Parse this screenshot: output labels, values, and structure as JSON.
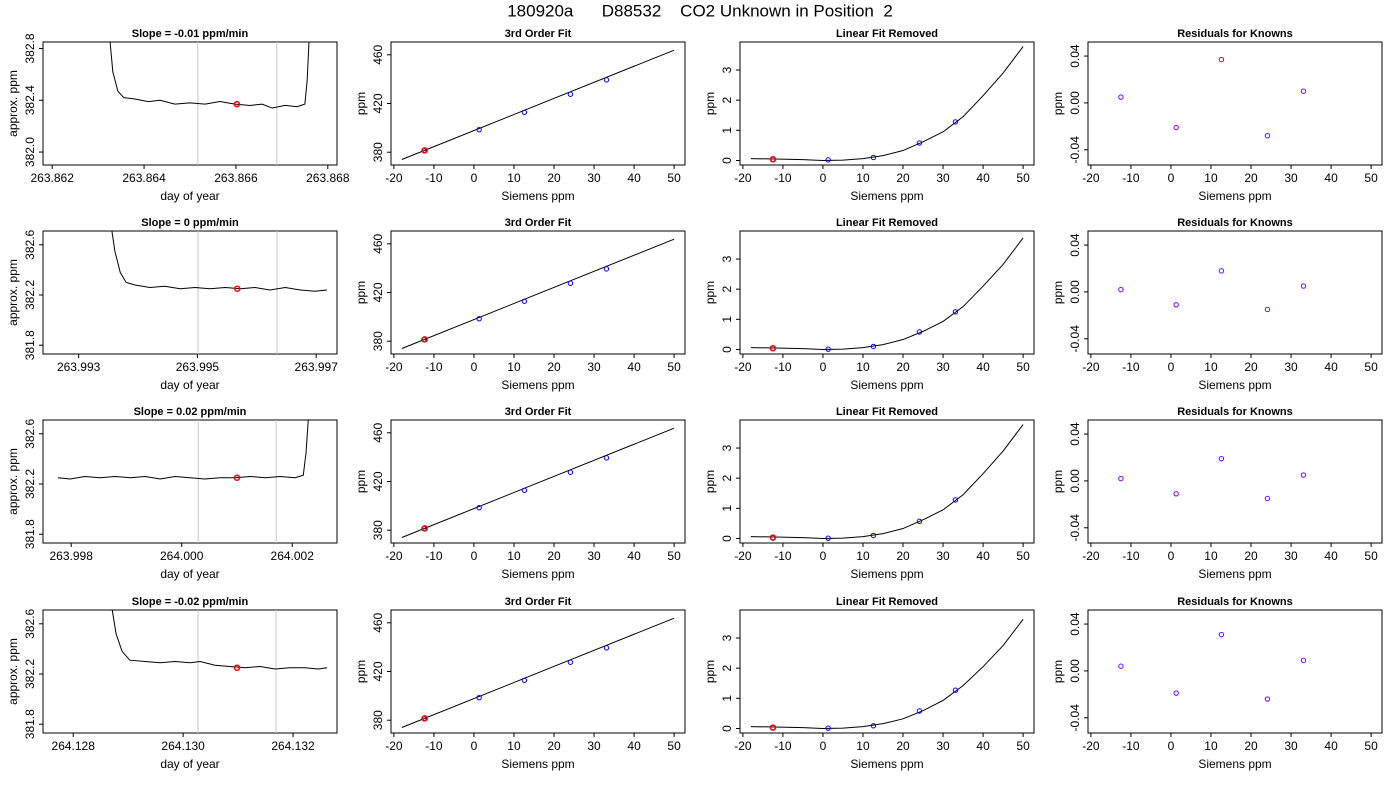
{
  "title": "180920a      D88532    CO2 Unknown in Position  2",
  "chart_data": [
    {
      "type": "line",
      "title": "Slope =  -0.01  ppm/min",
      "xlabel": "day of year",
      "ylabel": "approx. ppm",
      "xlim": [
        263.8618,
        263.8682
      ],
      "ylim": [
        381.9,
        382.85
      ],
      "xticks": [
        263.862,
        263.864,
        263.866,
        263.868
      ],
      "yticks": [
        {
          "value": 382,
          "label": "382.0"
        },
        382.4,
        382.8
      ],
      "line": {
        "x": [
          263.86326,
          263.86332,
          263.86343,
          263.86356,
          263.8638,
          263.86409,
          263.86435,
          263.86467,
          263.865,
          263.86533,
          263.86565,
          263.86598,
          263.86631,
          263.86657,
          263.86679,
          263.86707,
          263.86733,
          263.8675,
          263.86755,
          263.86759
        ],
        "y": [
          382.85,
          382.62,
          382.47,
          382.42,
          382.41,
          382.39,
          382.4,
          382.37,
          382.38,
          382.37,
          382.39,
          382.37,
          382.36,
          382.37,
          382.34,
          382.36,
          382.35,
          382.37,
          382.55,
          382.85
        ],
        "color": "#000000"
      },
      "vlines": {
        "x": [
          263.86517,
          263.86689
        ],
        "color": "#c8c8c8"
      },
      "highlight": {
        "x": [
          263.86602
        ],
        "y": [
          382.37
        ],
        "color": "#ff0000"
      }
    },
    {
      "type": "scatter",
      "title": "3rd Order Fit",
      "xlabel": "Siemens ppm",
      "ylabel": "ppm",
      "xlim": [
        -20.72,
        52.72
      ],
      "ylim": [
        369.5,
        470.5
      ],
      "xticks": [
        -20,
        -10,
        0,
        10,
        20,
        30,
        40,
        50
      ],
      "yticks": [
        380,
        420,
        460
      ],
      "line": {
        "x": [
          -18,
          16,
          50
        ],
        "y": [
          374,
          418.9,
          463.8
        ],
        "color": "#000000"
      },
      "points": {
        "x": [
          -12.5,
          1.3,
          12.6,
          24.1,
          33.1
        ],
        "y": [
          381.3,
          398.5,
          412.8,
          427.6,
          439.4
        ],
        "color": "#0000ff"
      },
      "highlight": {
        "x": [
          -12.3
        ],
        "y": [
          381.5
        ],
        "color": "#ff0000"
      }
    },
    {
      "type": "scatter",
      "title": "Linear Fit Removed",
      "xlabel": "Siemens ppm",
      "ylabel": "ppm",
      "xlim": [
        -20.72,
        52.72
      ],
      "ylim": [
        -0.15,
        3.93
      ],
      "xticks": [
        -20,
        -10,
        0,
        10,
        20,
        30,
        40,
        50
      ],
      "yticks": [
        0,
        1,
        2,
        3
      ],
      "line": {
        "x": [
          -18,
          -12,
          -5,
          0,
          5,
          10,
          15,
          20,
          25,
          30,
          35,
          40,
          45,
          50
        ],
        "y": [
          0.06,
          0.05,
          0.03,
          0,
          0.01,
          0.06,
          0.16,
          0.33,
          0.62,
          0.95,
          1.45,
          2.15,
          2.9,
          3.78
        ],
        "color": "#000000"
      },
      "points": {
        "x": [
          -12.5,
          1.3,
          12.6,
          24.1,
          33.1
        ],
        "y": [
          0.04,
          0.02,
          0.1,
          0.58,
          1.28
        ],
        "color": "#0000ff"
      },
      "highlight": {
        "x": [
          -12.5
        ],
        "y": [
          0.04
        ],
        "color": "#ff0000"
      }
    },
    {
      "type": "scatter",
      "title": "Residuals for Knowns",
      "xlabel": "Siemens ppm",
      "ylabel": "ppm",
      "xlim": [
        -20.72,
        52.72
      ],
      "ylim": [
        -0.053,
        0.052
      ],
      "xticks": [
        -20,
        -10,
        0,
        10,
        20,
        30,
        40,
        50
      ],
      "yticks": [
        -0.04,
        {
          "value": 0,
          "label": "0.00"
        },
        0.04
      ],
      "points": {
        "x": [
          -12.5,
          1.3,
          12.6,
          24.1,
          33.1
        ],
        "y": [
          0.005,
          -0.021,
          0.037,
          -0.028,
          0.01
        ],
        "color": "#7f00ff"
      }
    },
    {
      "type": "line",
      "title": "Slope =  0  ppm/min",
      "xlabel": "day of year",
      "ylabel": "approx. ppm",
      "xlim": [
        263.9924,
        263.99735
      ],
      "ylim": [
        381.73,
        382.71
      ],
      "xticks": [
        263.993,
        263.995,
        263.997
      ],
      "yticks": [
        381.8,
        382.2,
        382.6
      ],
      "line": {
        "x": [
          263.99356,
          263.99361,
          263.9937,
          263.9938,
          263.99395,
          263.9942,
          263.99445,
          263.99471,
          263.99496,
          263.99521,
          263.99547,
          263.99572,
          263.99597,
          263.99622,
          263.99648,
          263.99673,
          263.99698,
          263.99718
        ],
        "y": [
          382.71,
          382.55,
          382.38,
          382.3,
          382.28,
          382.26,
          382.27,
          382.25,
          382.26,
          382.25,
          382.26,
          382.25,
          382.26,
          382.24,
          382.26,
          382.24,
          382.23,
          382.24
        ],
        "color": "#000000"
      },
      "vlines": {
        "x": [
          263.99501,
          263.99634
        ],
        "color": "#c8c8c8"
      },
      "highlight": {
        "x": [
          263.99567
        ],
        "y": [
          382.25
        ],
        "color": "#ff0000"
      }
    },
    {
      "type": "scatter",
      "title": "3rd Order Fit",
      "xlabel": "Siemens ppm",
      "ylabel": "ppm",
      "xlim": [
        -20.72,
        52.72
      ],
      "ylim": [
        369.5,
        470.5
      ],
      "xticks": [
        -20,
        -10,
        0,
        10,
        20,
        30,
        40,
        50
      ],
      "yticks": [
        380,
        420,
        460
      ],
      "line": {
        "x": [
          -18,
          16,
          50
        ],
        "y": [
          374,
          418.9,
          463.8
        ],
        "color": "#000000"
      },
      "points": {
        "x": [
          -12.5,
          1.3,
          12.6,
          24.1,
          33.1
        ],
        "y": [
          381.3,
          398.5,
          412.8,
          427.6,
          439.4
        ],
        "color": "#0000ff"
      },
      "highlight": {
        "x": [
          -12.3
        ],
        "y": [
          381.5
        ],
        "color": "#ff0000"
      }
    },
    {
      "type": "scatter",
      "title": "Linear Fit Removed",
      "xlabel": "Siemens ppm",
      "ylabel": "ppm",
      "xlim": [
        -20.72,
        52.72
      ],
      "ylim": [
        -0.15,
        3.93
      ],
      "xticks": [
        -20,
        -10,
        0,
        10,
        20,
        30,
        40,
        50
      ],
      "yticks": [
        0,
        1,
        2,
        3
      ],
      "line": {
        "x": [
          -18,
          -12,
          -5,
          0,
          5,
          10,
          15,
          20,
          25,
          30,
          35,
          40,
          45,
          50
        ],
        "y": [
          0.06,
          0.05,
          0.03,
          0,
          0.01,
          0.06,
          0.16,
          0.33,
          0.6,
          0.93,
          1.42,
          2.1,
          2.82,
          3.7
        ],
        "color": "#000000"
      },
      "points": {
        "x": [
          -12.5,
          1.3,
          12.6,
          24.1,
          33.1
        ],
        "y": [
          0.04,
          0.01,
          0.1,
          0.58,
          1.25
        ],
        "color": "#0000ff"
      },
      "highlight": {
        "x": [
          -12.5
        ],
        "y": [
          0.04
        ],
        "color": "#ff0000"
      }
    },
    {
      "type": "scatter",
      "title": "Residuals for Knowns",
      "xlabel": "Siemens ppm",
      "ylabel": "ppm",
      "xlim": [
        -20.72,
        52.72
      ],
      "ylim": [
        -0.053,
        0.052
      ],
      "xticks": [
        -20,
        -10,
        0,
        10,
        20,
        30,
        40,
        50
      ],
      "yticks": [
        -0.04,
        {
          "value": 0,
          "label": "0.00"
        },
        0.04
      ],
      "points": {
        "x": [
          -12.5,
          1.3,
          12.6,
          24.1,
          33.1
        ],
        "y": [
          0.002,
          -0.011,
          0.018,
          -0.015,
          0.005
        ],
        "color": "#7f00ff"
      }
    },
    {
      "type": "line",
      "title": "Slope =  0.02  ppm/min",
      "xlabel": "day of year",
      "ylabel": "approx. ppm",
      "xlim": [
        263.99749,
        264.00281
      ],
      "ylim": [
        381.73,
        382.71
      ],
      "xticks": [
        263.998,
        {
          "value": 264,
          "label": "264.000"
        },
        264.002
      ],
      "yticks": [
        381.8,
        382.2,
        382.6
      ],
      "line": {
        "x": [
          263.99776,
          263.99798,
          263.99825,
          263.99852,
          263.99879,
          263.99907,
          263.99934,
          263.99961,
          263.99988,
          264.00015,
          264.00042,
          264.00069,
          264.00097,
          264.00124,
          264.00151,
          264.00178,
          264.00205,
          264.0022,
          264.00225,
          264.00229
        ],
        "y": [
          382.25,
          382.24,
          382.26,
          382.25,
          382.26,
          382.25,
          382.26,
          382.24,
          382.26,
          382.25,
          382.24,
          382.25,
          382.25,
          382.26,
          382.25,
          382.26,
          382.25,
          382.27,
          382.45,
          382.71
        ],
        "color": "#000000"
      },
      "vlines": {
        "x": [
          264.0003,
          264.00171
        ],
        "color": "#c8c8c8"
      },
      "highlight": {
        "x": [
          264.001
        ],
        "y": [
          382.25
        ],
        "color": "#ff0000"
      }
    },
    {
      "type": "scatter",
      "title": "3rd Order Fit",
      "xlabel": "Siemens ppm",
      "ylabel": "ppm",
      "xlim": [
        -20.72,
        52.72
      ],
      "ylim": [
        369.5,
        470.5
      ],
      "xticks": [
        -20,
        -10,
        0,
        10,
        20,
        30,
        40,
        50
      ],
      "yticks": [
        380,
        420,
        460
      ],
      "line": {
        "x": [
          -18,
          16,
          50
        ],
        "y": [
          374,
          418.9,
          463.8
        ],
        "color": "#000000"
      },
      "points": {
        "x": [
          -12.5,
          1.3,
          12.6,
          24.1,
          33.1
        ],
        "y": [
          381.3,
          398.5,
          412.8,
          427.6,
          439.4
        ],
        "color": "#0000ff"
      },
      "highlight": {
        "x": [
          -12.3
        ],
        "y": [
          381.5
        ],
        "color": "#ff0000"
      }
    },
    {
      "type": "scatter",
      "title": "Linear Fit Removed",
      "xlabel": "Siemens ppm",
      "ylabel": "ppm",
      "xlim": [
        -20.72,
        52.72
      ],
      "ylim": [
        -0.15,
        3.93
      ],
      "xticks": [
        -20,
        -10,
        0,
        10,
        20,
        30,
        40,
        50
      ],
      "yticks": [
        0,
        1,
        2,
        3
      ],
      "line": {
        "x": [
          -18,
          -12,
          -5,
          0,
          5,
          10,
          15,
          20,
          25,
          30,
          35,
          40,
          45,
          50
        ],
        "y": [
          0.06,
          0.05,
          0.03,
          0,
          0.01,
          0.06,
          0.16,
          0.33,
          0.62,
          0.95,
          1.45,
          2.15,
          2.9,
          3.78
        ],
        "color": "#000000"
      },
      "points": {
        "x": [
          -12.5,
          1.3,
          12.6,
          24.1,
          33.1
        ],
        "y": [
          0.03,
          0.01,
          0.1,
          0.57,
          1.28
        ],
        "color": "#0000ff"
      },
      "highlight": {
        "x": [
          -12.5
        ],
        "y": [
          0.03
        ],
        "color": "#ff0000"
      }
    },
    {
      "type": "scatter",
      "title": "Residuals for Knowns",
      "xlabel": "Siemens ppm",
      "ylabel": "ppm",
      "xlim": [
        -20.72,
        52.72
      ],
      "ylim": [
        -0.053,
        0.052
      ],
      "xticks": [
        -20,
        -10,
        0,
        10,
        20,
        30,
        40,
        50
      ],
      "yticks": [
        -0.04,
        {
          "value": 0,
          "label": "0.00"
        },
        0.04
      ],
      "points": {
        "x": [
          -12.5,
          1.3,
          12.6,
          24.1,
          33.1
        ],
        "y": [
          0.002,
          -0.011,
          0.019,
          -0.015,
          0.005
        ],
        "color": "#7f00ff"
      }
    },
    {
      "type": "line",
      "title": "Slope =  -0.02  ppm/min",
      "xlabel": "day of year",
      "ylabel": "approx. ppm",
      "xlim": [
        264.12745,
        264.1328
      ],
      "ylim": [
        381.73,
        382.71
      ],
      "xticks": [
        264.128,
        {
          "value": 264.13,
          "label": "264.130"
        },
        264.132
      ],
      "yticks": [
        381.8,
        382.2,
        382.6
      ],
      "line": {
        "x": [
          264.12871,
          264.12878,
          264.12889,
          264.12903,
          264.12931,
          264.12958,
          264.12985,
          264.13013,
          264.13031,
          264.13058,
          264.13085,
          264.13113,
          264.1314,
          264.13167,
          264.13194,
          264.13222,
          264.13246,
          264.13262
        ],
        "y": [
          382.71,
          382.52,
          382.38,
          382.31,
          382.3,
          382.29,
          382.3,
          382.29,
          382.3,
          382.27,
          382.26,
          382.25,
          382.26,
          382.24,
          382.25,
          382.25,
          382.24,
          382.25
        ],
        "color": "#000000"
      },
      "vlines": {
        "x": [
          264.13027,
          264.13169
        ],
        "color": "#c8c8c8"
      },
      "highlight": {
        "x": [
          264.13098
        ],
        "y": [
          382.25
        ],
        "color": "#ff0000"
      }
    },
    {
      "type": "scatter",
      "title": "3rd Order Fit",
      "xlabel": "Siemens ppm",
      "ylabel": "ppm",
      "xlim": [
        -20.72,
        52.72
      ],
      "ylim": [
        369.5,
        470.5
      ],
      "xticks": [
        -20,
        -10,
        0,
        10,
        20,
        30,
        40,
        50
      ],
      "yticks": [
        380,
        420,
        460
      ],
      "line": {
        "x": [
          -18,
          16,
          50
        ],
        "y": [
          374,
          418.9,
          463.8
        ],
        "color": "#000000"
      },
      "points": {
        "x": [
          -12.5,
          1.3,
          12.6,
          24.1,
          33.1
        ],
        "y": [
          381.3,
          398.5,
          412.8,
          427.6,
          439.4
        ],
        "color": "#0000ff"
      },
      "highlight": {
        "x": [
          -12.3
        ],
        "y": [
          381.5
        ],
        "color": "#ff0000"
      }
    },
    {
      "type": "scatter",
      "title": "Linear Fit Removed",
      "xlabel": "Siemens ppm",
      "ylabel": "ppm",
      "xlim": [
        -20.72,
        52.72
      ],
      "ylim": [
        -0.15,
        3.93
      ],
      "xticks": [
        -20,
        -10,
        0,
        10,
        20,
        30,
        40,
        50
      ],
      "yticks": [
        0,
        1,
        2,
        3
      ],
      "line": {
        "x": [
          -18,
          -12,
          -5,
          0,
          5,
          10,
          15,
          20,
          25,
          30,
          35,
          40,
          45,
          50
        ],
        "y": [
          0.06,
          0.05,
          0.03,
          0,
          0.01,
          0.06,
          0.16,
          0.32,
          0.59,
          0.93,
          1.42,
          2.05,
          2.75,
          3.62
        ],
        "color": "#000000"
      },
      "points": {
        "x": [
          -12.5,
          1.3,
          12.6,
          24.1,
          33.1
        ],
        "y": [
          0.03,
          0.01,
          0.09,
          0.58,
          1.27
        ],
        "color": "#0000ff"
      },
      "highlight": {
        "x": [
          -12.5
        ],
        "y": [
          0.03
        ],
        "color": "#ff0000"
      }
    },
    {
      "type": "scatter",
      "title": "Residuals for Knowns",
      "xlabel": "Siemens ppm",
      "ylabel": "ppm",
      "xlim": [
        -20.72,
        52.72
      ],
      "ylim": [
        -0.053,
        0.052
      ],
      "xticks": [
        -20,
        -10,
        0,
        10,
        20,
        30,
        40,
        50
      ],
      "yticks": [
        -0.04,
        {
          "value": 0,
          "label": "0.00"
        },
        0.04
      ],
      "points": {
        "x": [
          -12.5,
          1.3,
          12.6,
          24.1,
          33.1
        ],
        "y": [
          0.004,
          -0.019,
          0.031,
          -0.024,
          0.009
        ],
        "color": "#7f00ff"
      }
    }
  ]
}
